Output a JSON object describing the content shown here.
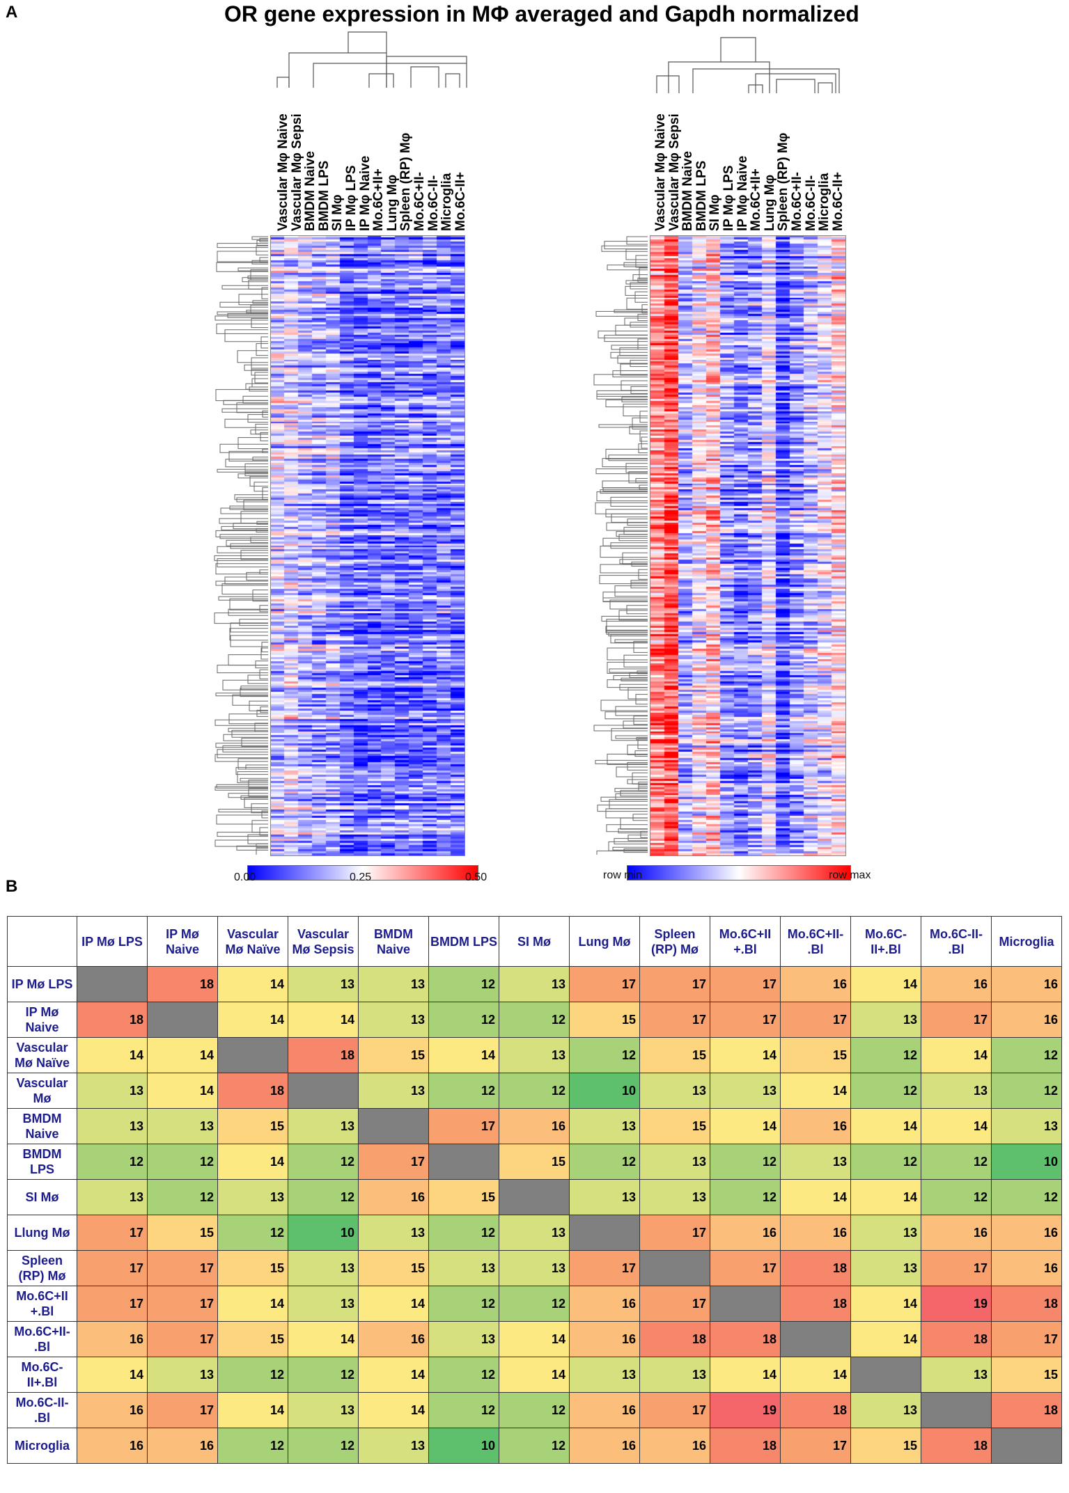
{
  "panel_a": {
    "label": "A",
    "title": "OR gene expression in MΦ averaged and Gapdh normalized",
    "left_heatmap": {
      "columns": [
        "Vascular Mφ Naive",
        "Vascular Mφ Sepsi",
        "BMDM Naive",
        "BMDM LPS",
        "SI Mφ",
        "IP Mφ LPS",
        "IP Mφ Naive",
        "Mo.6C+II+",
        "Lung Mφ",
        "Spleen (RP) Mφ",
        "Mo.6C+II-",
        "Mo.6C-II-",
        "Microglia",
        "Mo.6C-II+"
      ],
      "colorbar": {
        "min_label": "0.00",
        "mid_label": "0.25",
        "max_label": "0.50",
        "low_color": "#0000ff",
        "mid_color": "#ffffff",
        "high_color": "#ff0000"
      }
    },
    "right_heatmap": {
      "columns": [
        "Vascular Mφ Naive",
        "Vascular Mφ Sepsi",
        "BMDM Naive",
        "BMDM LPS",
        "SI Mφ",
        "IP Mφ LPS",
        "IP Mφ Naive",
        "Mo.6C+II+",
        "Lung Mφ",
        "Spleen (RP) Mφ",
        "Mo.6C+II-",
        "Mo.6C-II-",
        "Microglia",
        "Mo.6C-II+"
      ],
      "colorbar": {
        "min_label": "row min",
        "max_label": "row max",
        "low_color": "#0000ff",
        "mid_color": "#ffffff",
        "high_color": "#ff0000"
      }
    }
  },
  "panel_b": {
    "label": "B",
    "col_headers": [
      "IP Mø LPS",
      "IP Mø Naive",
      "Vascular Mø Naïve",
      "Vascular Mø Sepsis",
      "BMDM Naive",
      "BMDM LPS",
      "SI Mø",
      "Lung Mø",
      "Spleen (RP) Mø",
      "Mo.6C+II +.Bl",
      "Mo.6C+II- .Bl",
      "Mo.6C- II+.Bl",
      "Mo.6C-II- .Bl",
      "Microglia"
    ],
    "row_headers": [
      "IP Mø LPS",
      "IP Mø Naive",
      "Vascular Mø Naïve",
      "Vascular Mø",
      "BMDM Naive",
      "BMDM LPS",
      "SI Mø",
      "Llung Mø",
      "Spleen (RP) Mø",
      "Mo.6C+II +.Bl",
      "Mo.6C+II- .Bl",
      "Mo.6C- II+.Bl",
      "Mo.6C-II- .Bl",
      "Microglia"
    ],
    "values": [
      [
        null,
        18,
        14,
        13,
        13,
        12,
        13,
        17,
        17,
        17,
        16,
        14,
        16,
        16
      ],
      [
        18,
        null,
        14,
        14,
        13,
        12,
        12,
        15,
        17,
        17,
        17,
        13,
        17,
        16
      ],
      [
        14,
        14,
        null,
        18,
        15,
        14,
        13,
        12,
        15,
        14,
        15,
        12,
        14,
        12
      ],
      [
        13,
        14,
        18,
        null,
        13,
        12,
        12,
        10,
        13,
        13,
        14,
        12,
        13,
        12
      ],
      [
        13,
        13,
        15,
        13,
        null,
        17,
        16,
        13,
        15,
        14,
        16,
        14,
        14,
        13
      ],
      [
        12,
        12,
        14,
        12,
        17,
        null,
        15,
        12,
        13,
        12,
        13,
        12,
        12,
        10
      ],
      [
        13,
        12,
        13,
        12,
        16,
        15,
        null,
        13,
        13,
        12,
        14,
        14,
        12,
        12
      ],
      [
        17,
        15,
        12,
        10,
        13,
        12,
        13,
        null,
        17,
        16,
        16,
        13,
        16,
        16
      ],
      [
        17,
        17,
        15,
        13,
        15,
        13,
        13,
        17,
        null,
        17,
        18,
        13,
        17,
        16
      ],
      [
        17,
        17,
        14,
        13,
        14,
        12,
        12,
        16,
        17,
        null,
        18,
        14,
        19,
        18
      ],
      [
        16,
        17,
        15,
        14,
        16,
        13,
        14,
        16,
        18,
        18,
        null,
        14,
        18,
        17
      ],
      [
        14,
        13,
        12,
        12,
        14,
        12,
        14,
        13,
        13,
        14,
        14,
        null,
        13,
        15
      ],
      [
        16,
        17,
        14,
        13,
        14,
        12,
        12,
        16,
        17,
        19,
        18,
        13,
        null,
        18
      ],
      [
        16,
        16,
        12,
        12,
        13,
        10,
        12,
        16,
        16,
        18,
        17,
        15,
        18,
        null
      ]
    ]
  }
}
